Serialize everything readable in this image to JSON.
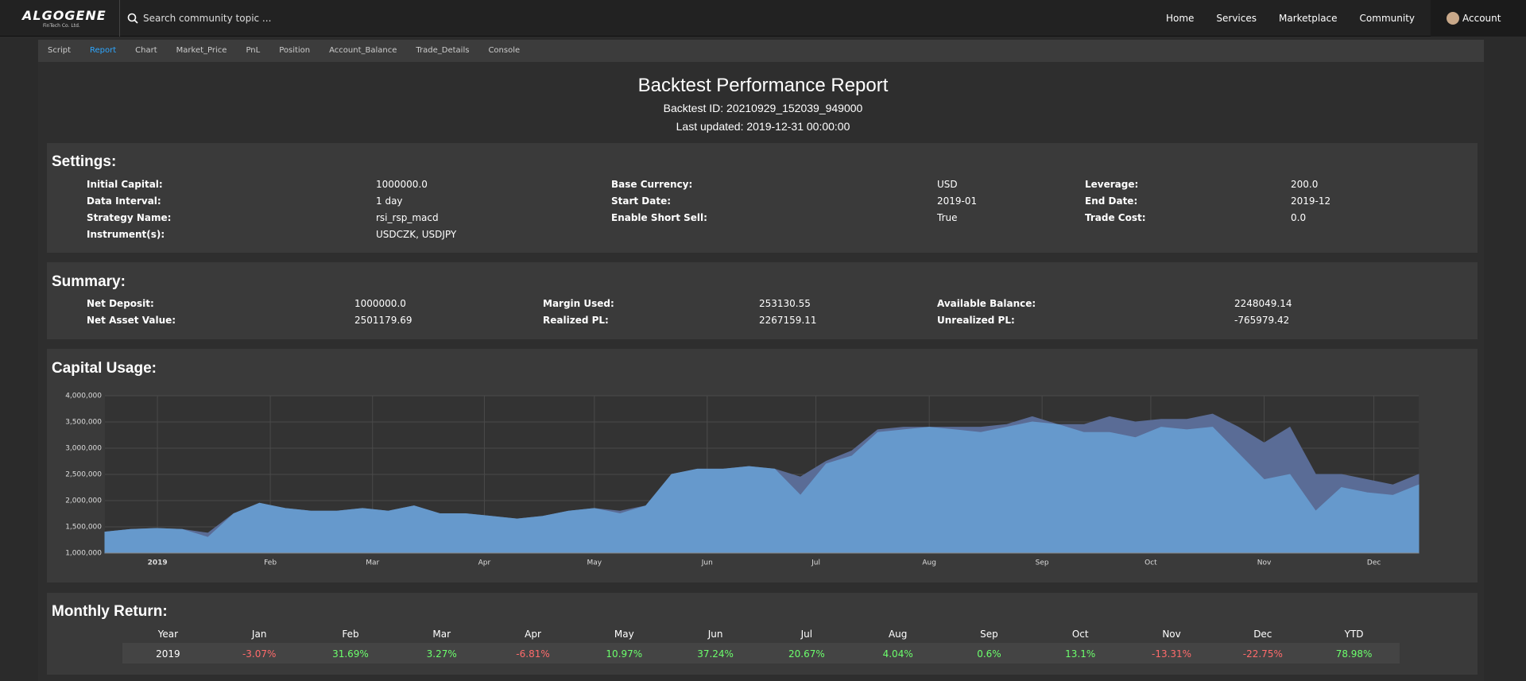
{
  "nav": {
    "brand": "ALGOGENE",
    "brand_sub": "FinTech Co. Ltd.",
    "search_placeholder": "Search community topic ...",
    "links": [
      "Home",
      "Services",
      "Marketplace",
      "Community"
    ],
    "account": "Account"
  },
  "tabs": [
    "Script",
    "Report",
    "Chart",
    "Market_Price",
    "PnL",
    "Position",
    "Account_Balance",
    "Trade_Details",
    "Console"
  ],
  "active_tab": 1,
  "report": {
    "title": "Backtest Performance Report",
    "backtest_id": "Backtest ID: 20210929_152039_949000",
    "last_updated": "Last updated: 2019-12-31 00:00:00"
  },
  "settings": {
    "title": "Settings:",
    "items": [
      {
        "label": "Initial Capital:",
        "value": "1000000.0"
      },
      {
        "label": "Base Currency:",
        "value": "USD"
      },
      {
        "label": "Leverage:",
        "value": "200.0"
      },
      {
        "label": "Data Interval:",
        "value": "1 day"
      },
      {
        "label": "Start Date:",
        "value": "2019-01"
      },
      {
        "label": "End Date:",
        "value": "2019-12"
      },
      {
        "label": "Strategy Name:",
        "value": "rsi_rsp_macd"
      },
      {
        "label": "Enable Short Sell:",
        "value": "True"
      },
      {
        "label": "Trade Cost:",
        "value": "0.0"
      },
      {
        "label": "Instrument(s):",
        "value": "USDCZK, USDJPY"
      }
    ]
  },
  "summary": {
    "title": "Summary:",
    "items": [
      {
        "label": "Net Deposit:",
        "value": "1000000.0"
      },
      {
        "label": "Margin Used:",
        "value": "253130.55"
      },
      {
        "label": "Available Balance:",
        "value": "2248049.14"
      },
      {
        "label": "Net Asset Value:",
        "value": "2501179.69"
      },
      {
        "label": "Realized PL:",
        "value": "2267159.11"
      },
      {
        "label": "Unrealized PL:",
        "value": "-765979.42"
      }
    ]
  },
  "capital_usage": {
    "title": "Capital Usage:",
    "chart_data": {
      "type": "area",
      "x": [
        0,
        1,
        2,
        3,
        4,
        5,
        6,
        7,
        8,
        9,
        10,
        11,
        12,
        13,
        14,
        15,
        16,
        17,
        18,
        19,
        20,
        21,
        22,
        23,
        24,
        25,
        26,
        27,
        28,
        29,
        30,
        31,
        32,
        33,
        34,
        35,
        36,
        37,
        38,
        39,
        40,
        41,
        42,
        43,
        44,
        45,
        46,
        47,
        48,
        49,
        50,
        51
      ],
      "xlim": [
        0,
        51
      ],
      "xticks": [
        {
          "value": 2.04,
          "label": "2019"
        },
        {
          "value": 6.42,
          "label": "Feb"
        },
        {
          "value": 10.39,
          "label": "Mar"
        },
        {
          "value": 14.73,
          "label": "Apr"
        },
        {
          "value": 19.0,
          "label": "May"
        },
        {
          "value": 23.38,
          "label": "Jun"
        },
        {
          "value": 27.6,
          "label": "Jul"
        },
        {
          "value": 32.0,
          "label": "Aug"
        },
        {
          "value": 36.38,
          "label": "Sep"
        },
        {
          "value": 40.6,
          "label": "Oct"
        },
        {
          "value": 45.0,
          "label": "Nov"
        },
        {
          "value": 49.26,
          "label": "Dec"
        }
      ],
      "ylim": [
        1000000,
        4000000
      ],
      "yticks": [
        {
          "value": 1000000,
          "label": "1,000,000"
        },
        {
          "value": 1500000,
          "label": "1,500,000"
        },
        {
          "value": 2000000,
          "label": "2,000,000"
        },
        {
          "value": 2500000,
          "label": "2,500,000"
        },
        {
          "value": 3000000,
          "label": "3,000,000"
        },
        {
          "value": 3500000,
          "label": "3,500,000"
        },
        {
          "value": 4000000,
          "label": "4,000,000"
        }
      ],
      "grid": true,
      "series": [
        {
          "color": "#5a6c96",
          "values": [
            1400000,
            1450000,
            1470000,
            1450000,
            1380000,
            1750000,
            1950000,
            1850000,
            1800000,
            1800000,
            1850000,
            1800000,
            1900000,
            1750000,
            1750000,
            1700000,
            1650000,
            1700000,
            1800000,
            1850000,
            1800000,
            1900000,
            2500000,
            2600000,
            2600000,
            2650000,
            2600000,
            2450000,
            2750000,
            2950000,
            3350000,
            3400000,
            3400000,
            3400000,
            3400000,
            3450000,
            3600000,
            3450000,
            3450000,
            3600000,
            3500000,
            3550000,
            3550000,
            3650000,
            3400000,
            3100000,
            3400000,
            2500000,
            2500000,
            2400000,
            2300000,
            2500000
          ]
        },
        {
          "color": "#6699cc",
          "values": [
            1400000,
            1450000,
            1470000,
            1450000,
            1300000,
            1750000,
            1950000,
            1850000,
            1800000,
            1800000,
            1850000,
            1800000,
            1900000,
            1750000,
            1750000,
            1700000,
            1650000,
            1700000,
            1800000,
            1850000,
            1750000,
            1900000,
            2500000,
            2600000,
            2600000,
            2650000,
            2600000,
            2100000,
            2700000,
            2850000,
            3300000,
            3350000,
            3400000,
            3350000,
            3300000,
            3400000,
            3500000,
            3450000,
            3300000,
            3300000,
            3200000,
            3400000,
            3350000,
            3400000,
            2900000,
            2400000,
            2500000,
            1800000,
            2250000,
            2150000,
            2100000,
            2300000
          ]
        }
      ]
    }
  },
  "monthly_return": {
    "title": "Monthly Return:",
    "header": [
      "Year",
      "Jan",
      "Feb",
      "Mar",
      "Apr",
      "May",
      "Jun",
      "Jul",
      "Aug",
      "Sep",
      "Oct",
      "Nov",
      "Dec",
      "YTD"
    ],
    "rows": [
      [
        "2019",
        "-3.07%",
        "31.69%",
        "3.27%",
        "-6.81%",
        "10.97%",
        "37.24%",
        "20.67%",
        "4.04%",
        "0.6%",
        "13.1%",
        "-13.31%",
        "-22.75%",
        "78.98%"
      ]
    ]
  }
}
